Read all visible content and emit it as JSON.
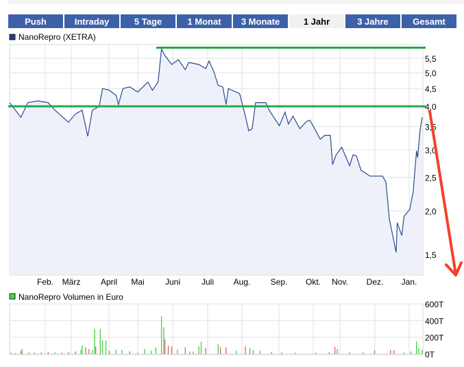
{
  "tabs": [
    {
      "label": "Push",
      "active": false
    },
    {
      "label": "Intraday",
      "active": false
    },
    {
      "label": "5 Tage",
      "active": false
    },
    {
      "label": "1 Monat",
      "active": false
    },
    {
      "label": "3 Monate",
      "active": false
    },
    {
      "label": "1 Jahr",
      "active": true
    },
    {
      "label": "3 Jahre",
      "active": false
    },
    {
      "label": "Gesamt",
      "active": false
    }
  ],
  "colors": {
    "tab_bg": "#3d61a8",
    "price_line": "#2b4a8c",
    "price_fill": "#eef1fa",
    "grid": "#e2e2e2",
    "annotation_lines": "#22a84a",
    "arrow": "#f5402a",
    "volume_up": "#4fd34f",
    "volume_down": "#e86a6a"
  },
  "chart_data": [
    {
      "type": "area",
      "legend": "NanoRepro (XETRA)",
      "legend_color": "#2b3f7a",
      "y_scale": "log",
      "ylim": [
        1.35,
        6.0
      ],
      "y_ticks": [
        "5,5",
        "5,0",
        "4,5",
        "4,0",
        "3,5",
        "3,0",
        "2,5",
        "2,0",
        "1,5"
      ],
      "y_tick_values": [
        5.5,
        5.0,
        4.5,
        4.0,
        3.5,
        3.0,
        2.5,
        2.0,
        1.5
      ],
      "x_ticks": [
        "Feb.",
        "März",
        "April",
        "Mai",
        "Juni",
        "Juli",
        "Aug.",
        "Sep.",
        "Okt.",
        "Nov.",
        "Dez.",
        "Jan."
      ],
      "grid": true,
      "horizontal_lines": [
        5.9,
        4.0
      ],
      "annotation": "red arrow pointing down from the right end",
      "points": [
        [
          "15.01.",
          4.1
        ],
        [
          "25.01.",
          3.72
        ],
        [
          "31.01.",
          4.1
        ],
        [
          "09.02.",
          4.15
        ],
        [
          "18.02.",
          4.1
        ],
        [
          "24.02.",
          3.9
        ],
        [
          "08.03.",
          3.6
        ],
        [
          "14.03.",
          3.8
        ],
        [
          "20.03.",
          3.9
        ],
        [
          "25.03.",
          3.28
        ],
        [
          "29.03.",
          3.9
        ],
        [
          "04.04.",
          4.0
        ],
        [
          "07.04.",
          4.5
        ],
        [
          "13.04.",
          4.45
        ],
        [
          "19.04.",
          4.3
        ],
        [
          "21.04.",
          4.05
        ],
        [
          "25.04.",
          4.5
        ],
        [
          "01.05.",
          4.55
        ],
        [
          "08.05.",
          4.4
        ],
        [
          "17.05.",
          4.7
        ],
        [
          "21.05.",
          4.45
        ],
        [
          "26.05.",
          4.7
        ],
        [
          "29.05.",
          5.85
        ],
        [
          "01.06.",
          5.6
        ],
        [
          "07.06.",
          5.28
        ],
        [
          "13.06.",
          5.45
        ],
        [
          "19.06.",
          5.1
        ],
        [
          "22.06.",
          5.35
        ],
        [
          "01.07.",
          5.28
        ],
        [
          "07.07.",
          5.14
        ],
        [
          "10.07.",
          5.4
        ],
        [
          "14.07.",
          5.05
        ],
        [
          "18.07.",
          4.6
        ],
        [
          "22.07.",
          4.55
        ],
        [
          "25.07.",
          4.05
        ],
        [
          "27.07.",
          4.5
        ],
        [
          "06.08.",
          4.35
        ],
        [
          "11.08.",
          3.75
        ],
        [
          "14.08.",
          3.4
        ],
        [
          "17.08.",
          3.45
        ],
        [
          "20.08.",
          4.1
        ],
        [
          "29.08.",
          4.1
        ],
        [
          "01.09.",
          3.9
        ],
        [
          "10.09.",
          3.52
        ],
        [
          "15.09.",
          3.85
        ],
        [
          "18.09.",
          3.56
        ],
        [
          "22.09.",
          3.75
        ],
        [
          "28.09.",
          3.45
        ],
        [
          "04.10.",
          3.62
        ],
        [
          "07.10.",
          3.65
        ],
        [
          "16.10.",
          3.22
        ],
        [
          "20.10.",
          3.3
        ],
        [
          "25.10.",
          3.3
        ],
        [
          "27.10.",
          2.72
        ],
        [
          "30.10.",
          2.9
        ],
        [
          "04.11.",
          3.05
        ],
        [
          "11.11.",
          2.7
        ],
        [
          "14.11.",
          2.9
        ],
        [
          "17.11.",
          2.88
        ],
        [
          "21.11.",
          2.62
        ],
        [
          "29.11.",
          2.52
        ],
        [
          "10.12.",
          2.52
        ],
        [
          "13.12.",
          2.42
        ],
        [
          "16.12.",
          1.9
        ],
        [
          "22.12.",
          1.52
        ],
        [
          "23.12.",
          1.85
        ],
        [
          "27.12.",
          1.7
        ],
        [
          "29.12.",
          1.93
        ],
        [
          "03.01.",
          2.02
        ],
        [
          "06.01.",
          2.27
        ],
        [
          "09.01.",
          2.98
        ],
        [
          "10.01.",
          2.85
        ],
        [
          "12.01.",
          3.4
        ],
        [
          "14.01.",
          3.72
        ]
      ]
    },
    {
      "type": "bar",
      "legend": "NanoRepro Volumen in Euro",
      "legend_color": "#4fd34f",
      "ylim": [
        0,
        600
      ],
      "y_ticks": [
        "600T",
        "400T",
        "200T",
        "0T"
      ],
      "y_tick_values": [
        600,
        400,
        200,
        0
      ],
      "grid": true,
      "bars": [
        [
          "16.01.",
          15,
          "down"
        ],
        [
          "20.01.",
          10,
          "down"
        ],
        [
          "25.01.",
          35,
          "down"
        ],
        [
          "26.01.",
          60,
          "up"
        ],
        [
          "01.02.",
          20,
          "up"
        ],
        [
          "06.02.",
          15,
          "down"
        ],
        [
          "12.02.",
          20,
          "up"
        ],
        [
          "18.02.",
          25,
          "down"
        ],
        [
          "24.02.",
          20,
          "up"
        ],
        [
          "02.03.",
          15,
          "down"
        ],
        [
          "08.03.",
          25,
          "up"
        ],
        [
          "14.03.",
          30,
          "down"
        ],
        [
          "19.03.",
          50,
          "up"
        ],
        [
          "20.03.",
          100,
          "up"
        ],
        [
          "23.03.",
          80,
          "down"
        ],
        [
          "26.03.",
          60,
          "down"
        ],
        [
          "29.03.",
          50,
          "up"
        ],
        [
          "31.03.",
          300,
          "up"
        ],
        [
          "01.04.",
          90,
          "down"
        ],
        [
          "05.04.",
          300,
          "up"
        ],
        [
          "07.04.",
          160,
          "up"
        ],
        [
          "10.04.",
          160,
          "up"
        ],
        [
          "13.04.",
          40,
          "down"
        ],
        [
          "19.04.",
          50,
          "up"
        ],
        [
          "24.04.",
          50,
          "up"
        ],
        [
          "01.05.",
          30,
          "down"
        ],
        [
          "08.05.",
          20,
          "up"
        ],
        [
          "14.05.",
          60,
          "up"
        ],
        [
          "20.05.",
          40,
          "up"
        ],
        [
          "24.05.",
          80,
          "up"
        ],
        [
          "29.05.",
          450,
          "up"
        ],
        [
          "31.05.",
          320,
          "up"
        ],
        [
          "01.06.",
          175,
          "down"
        ],
        [
          "04.06.",
          100,
          "down"
        ],
        [
          "07.06.",
          90,
          "down"
        ],
        [
          "12.06.",
          50,
          "up"
        ],
        [
          "19.06.",
          80,
          "down"
        ],
        [
          "23.06.",
          30,
          "up"
        ],
        [
          "26.06.",
          30,
          "up"
        ],
        [
          "01.07.",
          90,
          "up"
        ],
        [
          "03.07.",
          145,
          "up"
        ],
        [
          "07.07.",
          75,
          "down"
        ],
        [
          "18.07.",
          120,
          "up"
        ],
        [
          "20.07.",
          85,
          "down"
        ],
        [
          "25.07.",
          80,
          "down"
        ],
        [
          "03.08.",
          40,
          "up"
        ],
        [
          "11.08.",
          90,
          "down"
        ],
        [
          "15.08.",
          70,
          "up"
        ],
        [
          "18.08.",
          50,
          "up"
        ],
        [
          "24.08.",
          40,
          "up"
        ],
        [
          "03.09.",
          25,
          "up"
        ],
        [
          "12.09.",
          20,
          "down"
        ],
        [
          "24.09.",
          15,
          "up"
        ],
        [
          "12.10.",
          15,
          "down"
        ],
        [
          "24.10.",
          20,
          "down"
        ],
        [
          "29.10.",
          85,
          "down"
        ],
        [
          "31.10.",
          60,
          "up"
        ],
        [
          "11.11.",
          20,
          "down"
        ],
        [
          "23.11.",
          20,
          "up"
        ],
        [
          "03.12.",
          45,
          "down"
        ],
        [
          "17.12.",
          50,
          "down"
        ],
        [
          "20.12.",
          45,
          "down"
        ],
        [
          "29.12.",
          20,
          "up"
        ],
        [
          "04.01.",
          30,
          "up"
        ],
        [
          "09.01.",
          150,
          "up"
        ],
        [
          "11.01.",
          70,
          "up"
        ],
        [
          "14.01.",
          50,
          "up"
        ]
      ]
    }
  ]
}
